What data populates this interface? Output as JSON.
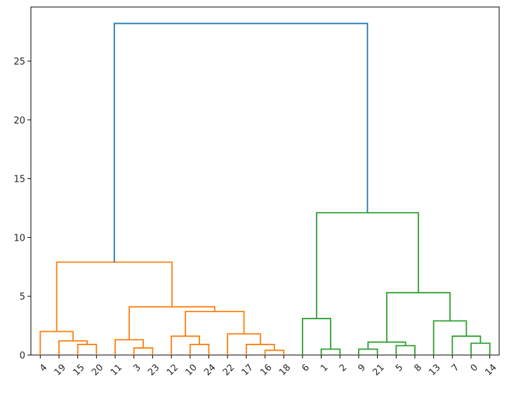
{
  "chart_data": {
    "type": "dendrogram",
    "title": "",
    "xlabel": "",
    "ylabel": "",
    "ylim": [
      0,
      29.6
    ],
    "yticks": [
      0,
      5,
      10,
      15,
      20,
      25
    ],
    "leaf_order": [
      "4",
      "19",
      "15",
      "20",
      "11",
      "3",
      "23",
      "12",
      "10",
      "24",
      "22",
      "17",
      "16",
      "18",
      "6",
      "1",
      "2",
      "9",
      "21",
      "5",
      "8",
      "13",
      "7",
      "0",
      "14"
    ],
    "colors": {
      "orange": "#ff7f0e",
      "green": "#2ca02c",
      "blue": "#1f77b4",
      "axis": "#000000"
    },
    "links": [
      {
        "left": "15",
        "right": "20",
        "height": 0.9,
        "color": "orange"
      },
      {
        "left": "19",
        "right": "15+20",
        "height": 1.2,
        "color": "orange"
      },
      {
        "left": "4",
        "right": "19+15+20",
        "height": 2.0,
        "color": "orange"
      },
      {
        "left": "3",
        "right": "23",
        "height": 0.6,
        "color": "orange"
      },
      {
        "left": "11",
        "right": "3+23",
        "height": 1.3,
        "color": "orange"
      },
      {
        "left": "10",
        "right": "24",
        "height": 0.9,
        "color": "orange"
      },
      {
        "left": "12",
        "right": "10+24",
        "height": 1.6,
        "color": "orange"
      },
      {
        "left": "16",
        "right": "18",
        "height": 0.4,
        "color": "orange"
      },
      {
        "left": "17",
        "right": "16+18",
        "height": 0.9,
        "color": "orange"
      },
      {
        "left": "22",
        "right": "17+16+18",
        "height": 1.8,
        "color": "orange"
      },
      {
        "left": "12+10+24",
        "right": "22+17+16+18",
        "height": 3.7,
        "color": "orange"
      },
      {
        "left": "11+3+23",
        "right": "12..18",
        "height": 4.1,
        "color": "orange"
      },
      {
        "left": "4+19+15+20",
        "right": "11..18",
        "height": 7.9,
        "color": "orange"
      },
      {
        "left": "1",
        "right": "2",
        "height": 0.5,
        "color": "green"
      },
      {
        "left": "6",
        "right": "1+2",
        "height": 3.1,
        "color": "green"
      },
      {
        "left": "9",
        "right": "21",
        "height": 0.5,
        "color": "green"
      },
      {
        "left": "5",
        "right": "8",
        "height": 0.8,
        "color": "green"
      },
      {
        "left": "9+21",
        "right": "5+8",
        "height": 1.1,
        "color": "green"
      },
      {
        "left": "0",
        "right": "14",
        "height": 1.0,
        "color": "green"
      },
      {
        "left": "7",
        "right": "0+14",
        "height": 1.6,
        "color": "green"
      },
      {
        "left": "13",
        "right": "7+0+14",
        "height": 2.9,
        "color": "green"
      },
      {
        "left": "9+21+5+8",
        "right": "13+7+0+14",
        "height": 5.3,
        "color": "green"
      },
      {
        "left": "6+1+2",
        "right": "9..14",
        "height": 12.1,
        "color": "green"
      },
      {
        "left": "4..18",
        "right": "6..14",
        "height": 28.2,
        "color": "blue"
      }
    ]
  }
}
